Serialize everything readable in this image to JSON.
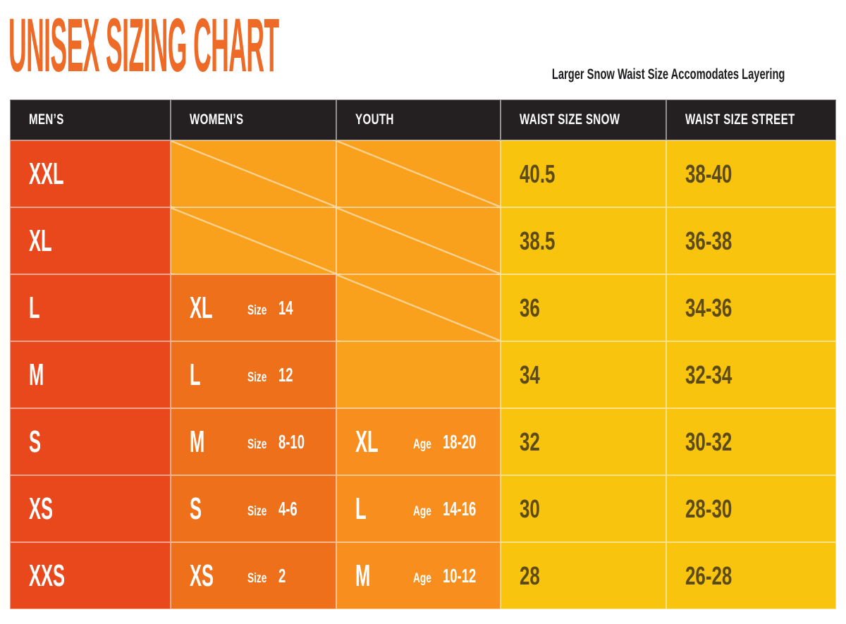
{
  "colors": {
    "title": "#ED6B26",
    "note_text": "#1b1b1d",
    "header_bg": "#242021",
    "header_text": "#ffffff",
    "mens_col": "#E8481B",
    "womens_col": "#EF701A",
    "youth_col": "#F78E1E",
    "empty_cell": "#F9A11C",
    "waist_col_gold": "#F9C40D",
    "waist_text": "#5C4B16",
    "grid_line": "rgba(255,255,255,0.5)"
  },
  "chart_data": {
    "type": "table",
    "title": "UNISEX SIZING CHART",
    "note": "Larger Snow Waist Size Accomodates Layering",
    "columns": [
      "MEN’S",
      "WOMEN’S",
      "YOUTH",
      "WAIST SIZE SNOW",
      "WAIST SIZE STREET"
    ],
    "rows": [
      {
        "mens": "XXL",
        "womens": null,
        "youth": null,
        "waist_snow": "40.5",
        "waist_street": "38-40"
      },
      {
        "mens": "XL",
        "womens": null,
        "youth": null,
        "waist_snow": "38.5",
        "waist_street": "36-38"
      },
      {
        "mens": "L",
        "womens": {
          "label": "XL",
          "sub_label": "Size",
          "sub_value": "14"
        },
        "youth": null,
        "waist_snow": "36",
        "waist_street": "34-36"
      },
      {
        "mens": "M",
        "womens": {
          "label": "L",
          "sub_label": "Size",
          "sub_value": "12"
        },
        "youth": null,
        "waist_snow": "34",
        "waist_street": "32-34"
      },
      {
        "mens": "S",
        "womens": {
          "label": "M",
          "sub_label": "Size",
          "sub_value": "8-10"
        },
        "youth": {
          "label": "XL",
          "sub_label": "Age",
          "sub_value": "18-20"
        },
        "waist_snow": "32",
        "waist_street": "30-32"
      },
      {
        "mens": "XS",
        "womens": {
          "label": "S",
          "sub_label": "Size",
          "sub_value": "4-6"
        },
        "youth": {
          "label": "L",
          "sub_label": "Age",
          "sub_value": "14-16"
        },
        "waist_snow": "30",
        "waist_street": "28-30"
      },
      {
        "mens": "XXS",
        "womens": {
          "label": "XS",
          "sub_label": "Size",
          "sub_value": "2"
        },
        "youth": {
          "label": "M",
          "sub_label": "Age",
          "sub_value": "10-12"
        },
        "waist_snow": "28",
        "waist_street": "26-28"
      }
    ]
  }
}
